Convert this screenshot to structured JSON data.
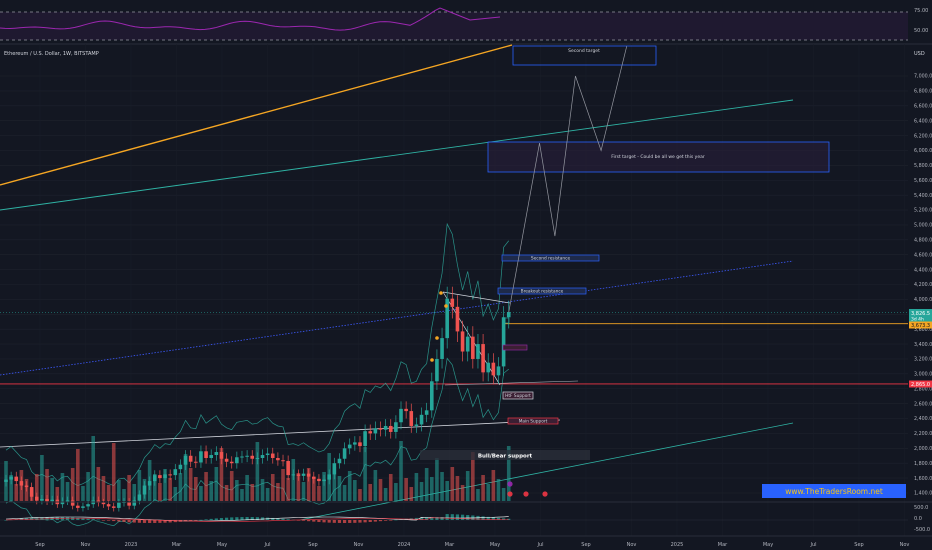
{
  "header": {
    "symbol_line": "Ethereum / U.S. Dollar, 1W, BITSTAMP",
    "currency": "USD"
  },
  "price_axis": {
    "labels": [
      "7,000.0",
      "6,800.0",
      "6,600.0",
      "6,400.0",
      "6,200.0",
      "6,000.0",
      "5,800.0",
      "5,600.0",
      "5,400.0",
      "5,200.0",
      "5,000.0",
      "4,800.0",
      "4,600.0",
      "4,400.0",
      "4,200.0",
      "4,000.0",
      "3,800.0",
      "3,600.0",
      "3,400.0",
      "3,200.0",
      "3,000.0",
      "2,800.0",
      "2,600.0",
      "2,400.0",
      "2,200.0",
      "2,000.0",
      "1,800.0",
      "1,600.0",
      "1,400.0"
    ],
    "values": [
      7000,
      6800,
      6600,
      6400,
      6200,
      6000,
      5800,
      5600,
      5400,
      5200,
      5000,
      4800,
      4600,
      4400,
      4200,
      4000,
      3800,
      3600,
      3400,
      3200,
      3000,
      2800,
      2600,
      2400,
      2200,
      2000,
      1800,
      1600,
      1400
    ],
    "current_price": "3,826.5",
    "countdown": "3d 4h",
    "level_orange": "3,673.3",
    "level_red": "2,865.0"
  },
  "rsi_axis": {
    "labels": [
      "75.00",
      "50.00"
    ],
    "values": [
      75,
      50
    ]
  },
  "osc_axis": {
    "labels": [
      "500.0",
      "0.0",
      "-500.0"
    ],
    "values": [
      500,
      0,
      -500
    ]
  },
  "time_axis": {
    "labels": [
      "Sep",
      "Nov",
      "2023",
      "Mar",
      "May",
      "Jul",
      "Sep",
      "Nov",
      "2024",
      "Mar",
      "May",
      "Jul",
      "Sep",
      "Nov",
      "2025",
      "Mar",
      "May",
      "Jul",
      "Sep",
      "Nov"
    ]
  },
  "annotations": {
    "second_target": "Second target",
    "first_target": "First target - Could be all we get this year",
    "second_resistance": "Second resistance",
    "breakout_resistance": "Breakout resistance",
    "htf_support": "HtF Support",
    "main_support": "Main Support",
    "bull_bear_support": "Bull/Bear support"
  },
  "watermark": "www.TheTradersRoom.net",
  "colors": {
    "up": "#26a69a",
    "down": "#ef5350",
    "orange_line": "#f5a623",
    "teal_line": "#2fb3a4",
    "blue_line": "#3d5afe",
    "red_level": "#f23645",
    "rsi": "#9c27b0",
    "banner": "#2962ff"
  },
  "chart_data": {
    "type": "candlestick",
    "title": "Ethereum / U.S. Dollar, 1W, BITSTAMP",
    "y_unit": "USD",
    "ylim": [
      -600,
      7400
    ],
    "candles_approx": {
      "note_values": "weekly OHLC approximated",
      "close": [
        1580,
        1620,
        1560,
        1500,
        1480,
        1350,
        1300,
        1320,
        1290,
        1310,
        1250,
        1290,
        1300,
        1230,
        1200,
        1220,
        1250,
        1300,
        1270,
        1250,
        1220,
        1200,
        1270,
        1280,
        1230,
        1300,
        1380,
        1500,
        1560,
        1640,
        1600,
        1650,
        1640,
        1720,
        1780,
        1900,
        1820,
        1810,
        1960,
        1870,
        1910,
        1950,
        1860,
        1820,
        1800,
        1880,
        1890,
        1900,
        1860,
        1870,
        1910,
        1930,
        1870,
        1840,
        1830,
        1640,
        1650,
        1630,
        1660,
        1620,
        1590,
        1560,
        1580,
        1650,
        1800,
        1860,
        2000,
        2050,
        2080,
        2030,
        2230,
        2200,
        2270,
        2250,
        2300,
        2220,
        2350,
        2530,
        2500,
        2300,
        2320,
        2450,
        2510,
        2900,
        3200,
        3480,
        4010,
        3900,
        3570,
        3300,
        3500,
        3200,
        3400,
        3020,
        3150,
        2980,
        3100,
        3760,
        3830
      ],
      "level_lines": {
        "current": 3826.5,
        "orange": 3673.3,
        "red": 2865.0
      }
    },
    "projection_path": [
      [
        98,
        3826
      ],
      [
        104,
        6100
      ],
      [
        107,
        4850
      ],
      [
        111,
        7000
      ],
      [
        116,
        6000
      ],
      [
        121,
        7400
      ]
    ],
    "zones": [
      {
        "label": "Second target",
        "from": 7200,
        "to": 7450
      },
      {
        "label": "First target - Could be all we get this year",
        "from": 5620,
        "to": 6100
      },
      {
        "label": "Second resistance",
        "value": 4570
      },
      {
        "label": "Breakout resistance",
        "value": 4100
      },
      {
        "label": "HtF Support",
        "value": 2780
      },
      {
        "label": "Main Support",
        "value": 2370
      },
      {
        "label": "Bull/Bear support",
        "value": 1950
      }
    ],
    "rsi": {
      "levels": [
        75,
        50
      ]
    },
    "oscillator": {
      "levels": [
        500,
        0,
        -500
      ]
    }
  }
}
